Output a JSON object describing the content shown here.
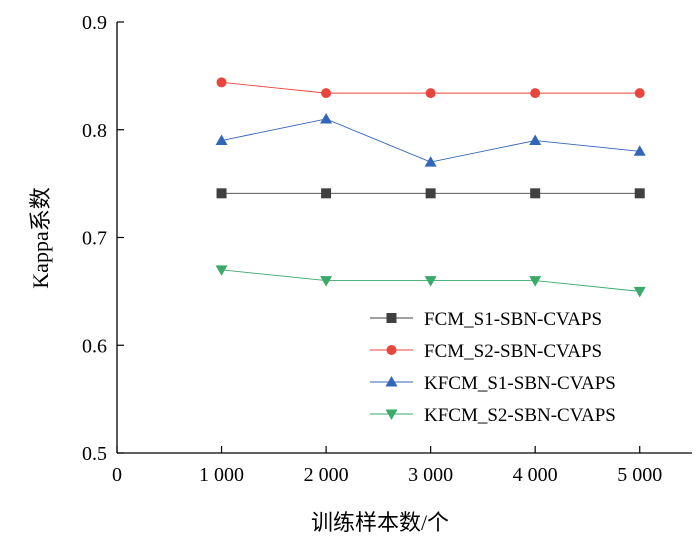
{
  "chart_data": {
    "type": "line",
    "xlabel": "训练样本数/个",
    "ylabel": "Kappa系数",
    "x": [
      1000,
      2000,
      3000,
      4000,
      5000
    ],
    "xlim": [
      0,
      5500
    ],
    "ylim": [
      0.5,
      0.9
    ],
    "x_ticks": [
      0,
      1000,
      2000,
      3000,
      4000,
      5000
    ],
    "x_tick_labels": [
      "0",
      "1 000",
      "2 000",
      "3 000",
      "4 000",
      "5 000"
    ],
    "y_ticks": [
      0.5,
      0.6,
      0.7,
      0.8,
      0.9
    ],
    "y_tick_labels": [
      "0.5",
      "0.6",
      "0.7",
      "0.8",
      "0.9"
    ],
    "grid": false,
    "legend_position": "bottom-right",
    "series": [
      {
        "name": "FCM_S1-SBN-CVAPS",
        "values": [
          0.741,
          0.741,
          0.741,
          0.741,
          0.741
        ],
        "marker": "square",
        "color": "#404040"
      },
      {
        "name": "FCM_S2-SBN-CVAPS",
        "values": [
          0.844,
          0.834,
          0.834,
          0.834,
          0.834
        ],
        "marker": "circle",
        "color": "#e8463c"
      },
      {
        "name": "KFCM_S1-SBN-CVAPS",
        "values": [
          0.79,
          0.81,
          0.77,
          0.79,
          0.78
        ],
        "marker": "triangle-up",
        "color": "#3366b8"
      },
      {
        "name": "KFCM_S2-SBN-CVAPS",
        "values": [
          0.67,
          0.66,
          0.66,
          0.66,
          0.65
        ],
        "marker": "triangle-down",
        "color": "#3aaa6a"
      }
    ]
  }
}
